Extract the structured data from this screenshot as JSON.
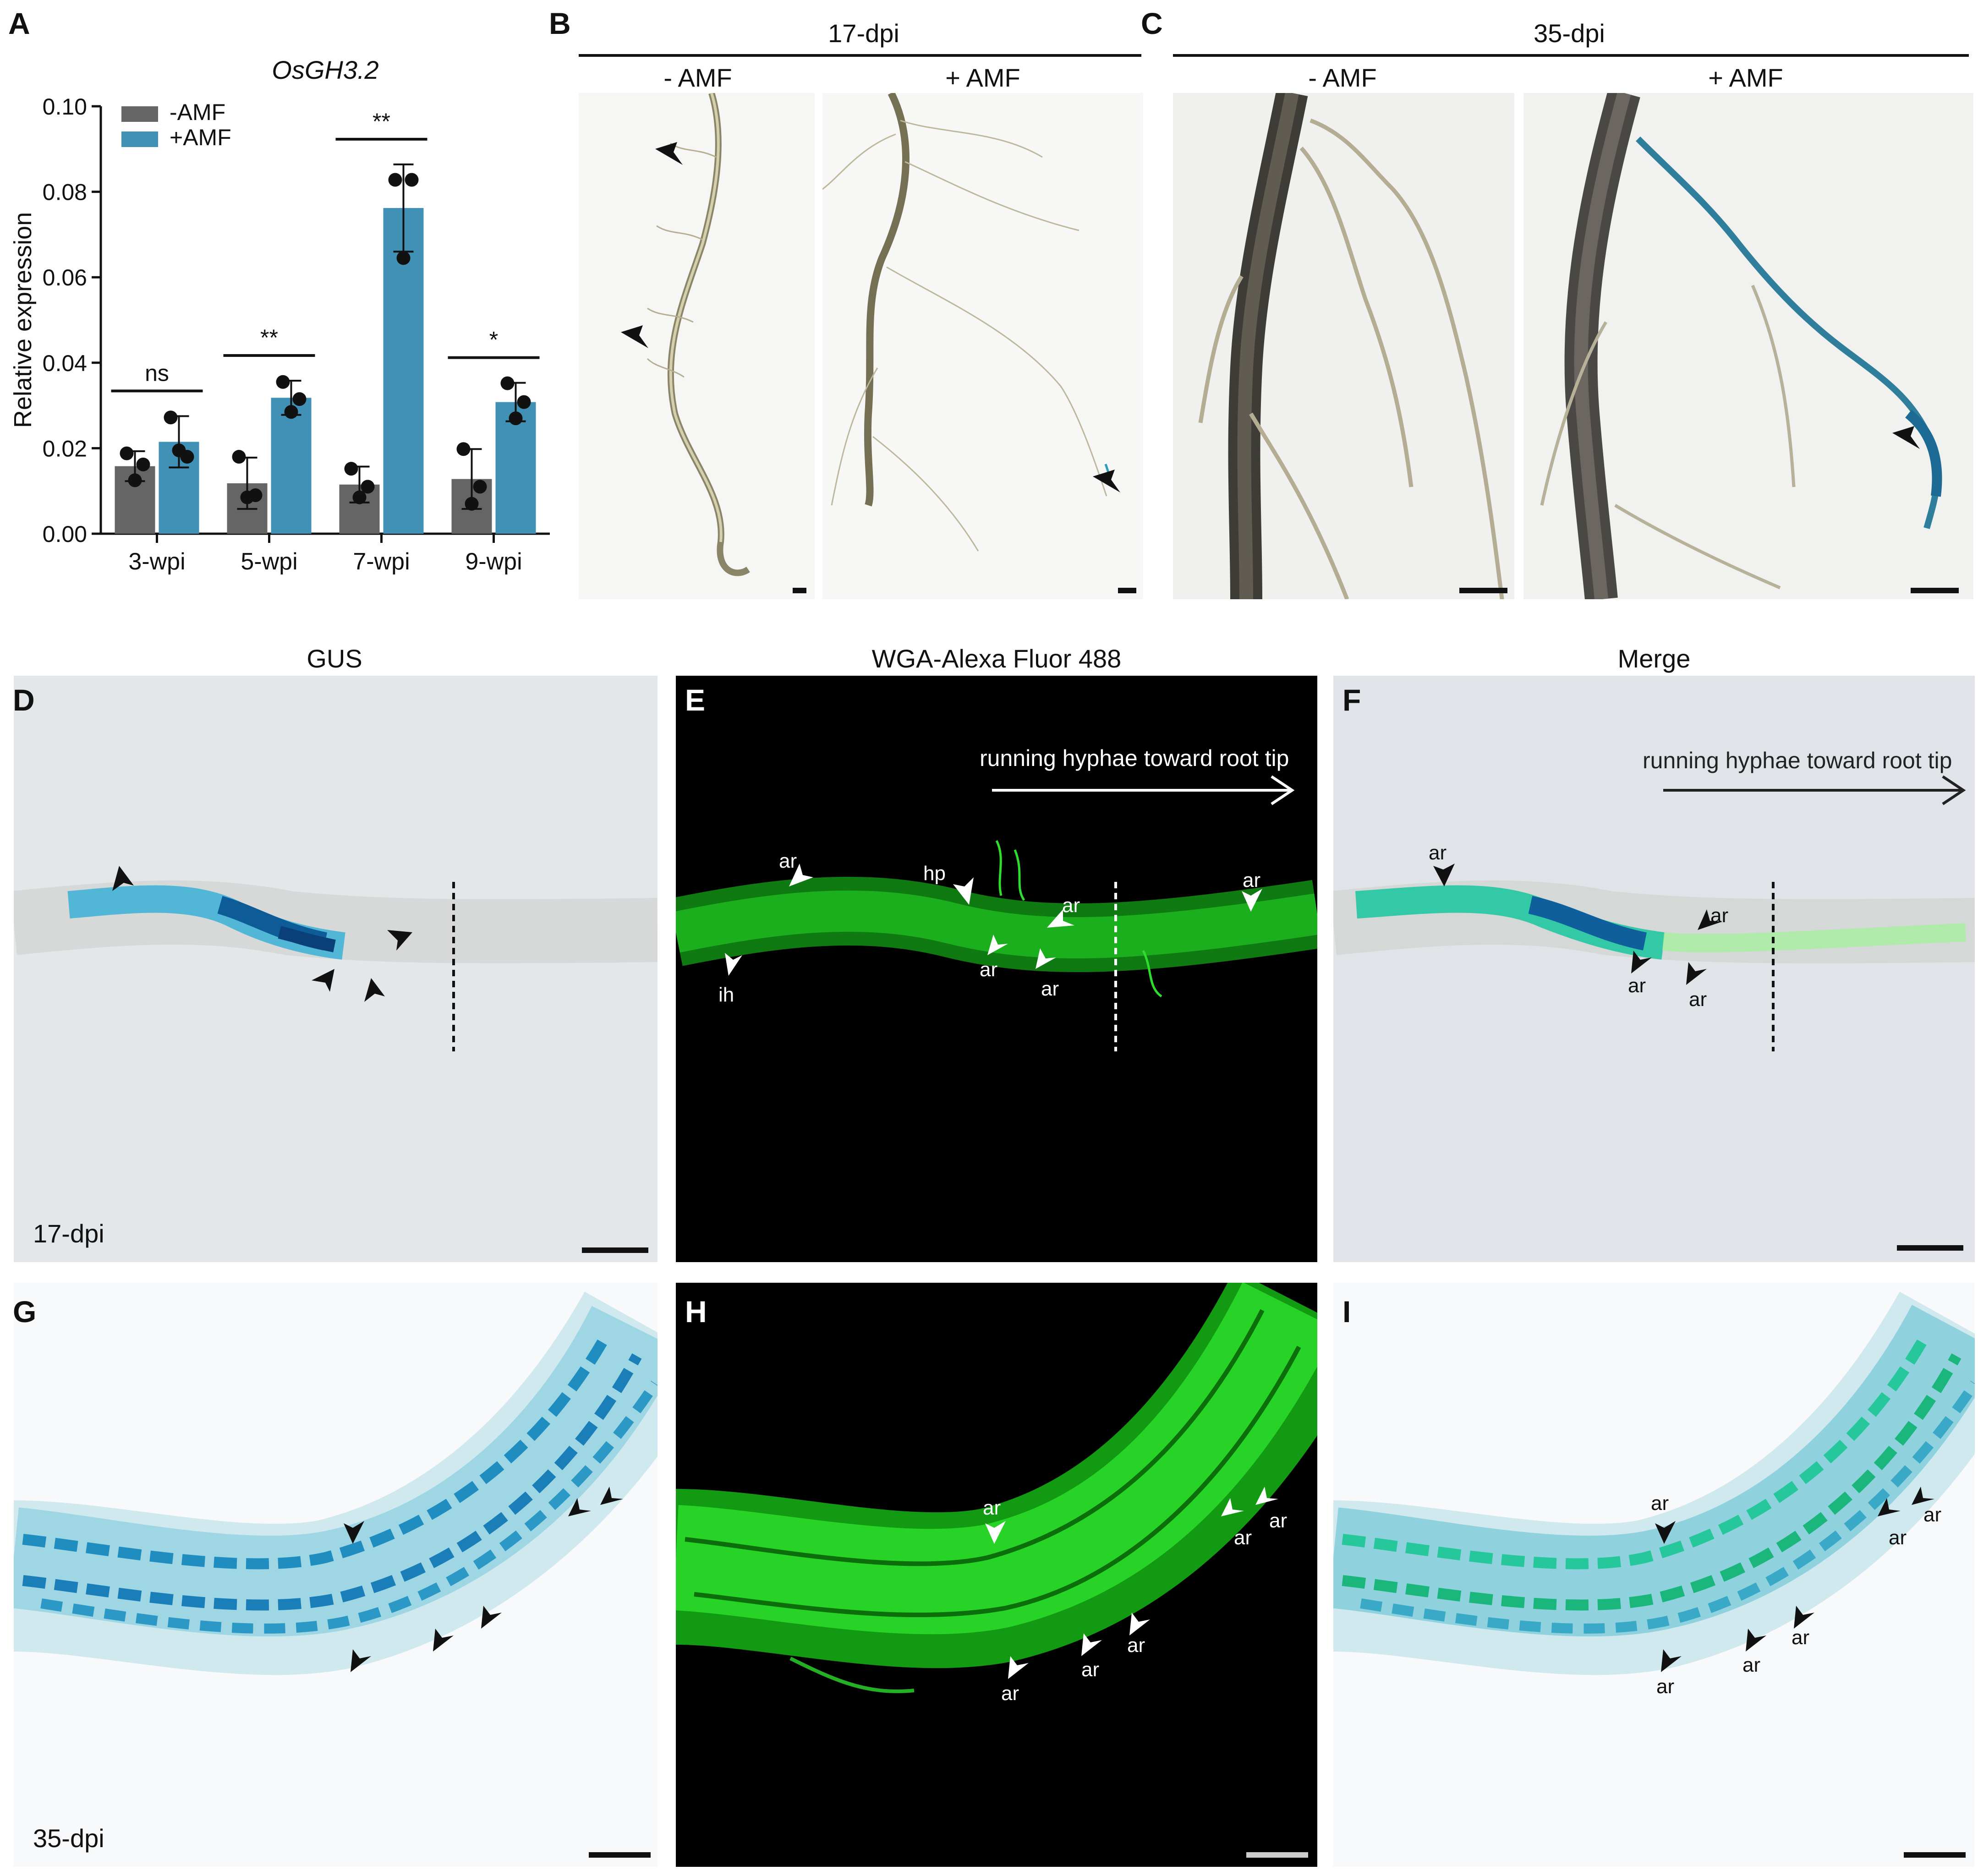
{
  "panels": {
    "A": "A",
    "B": "B",
    "C": "C",
    "D": "D",
    "E": "E",
    "F": "F",
    "G": "G",
    "H": "H",
    "I": "I"
  },
  "headers": {
    "b_time": "17-dpi",
    "c_time": "35-dpi",
    "b_left": "- AMF",
    "b_right": "+ AMF",
    "c_left": "- AMF",
    "c_right": "+ AMF",
    "row2_gus": "GUS",
    "row2_wga": "WGA-Alexa Fluor 488",
    "row2_merge": "Merge"
  },
  "labels": {
    "d_time": "17-dpi",
    "g_time": "35-dpi",
    "running": "running hyphae toward root tip",
    "ar": "ar",
    "hp": "hp",
    "ih": "ih"
  },
  "colors": {
    "neg_bar": "#656565",
    "pos_bar": "#4190b5",
    "gus_blue": "#1e7fb0",
    "fluor_green": "#22cc22"
  },
  "chart_data": {
    "type": "bar",
    "title": "OsGH3.2",
    "ylabel": "Relative expression",
    "xlabel": "",
    "ylim": [
      0,
      0.1
    ],
    "yticks": [
      "0.00",
      "0.02",
      "0.04",
      "0.06",
      "0.08",
      "0.10"
    ],
    "categories": [
      "3-wpi",
      "5-wpi",
      "7-wpi",
      "9-wpi"
    ],
    "legend_position": "top-left",
    "series": [
      {
        "name": "-AMF",
        "values": [
          0.0158,
          0.0118,
          0.0115,
          0.0128
        ],
        "errors": [
          0.0035,
          0.006,
          0.0042,
          0.007
        ],
        "points": [
          [
            0.0188,
            0.0162,
            0.0125
          ],
          [
            0.018,
            0.009,
            0.0085
          ],
          [
            0.0152,
            0.011,
            0.0085
          ],
          [
            0.0198,
            0.011,
            0.007
          ]
        ]
      },
      {
        "name": "+AMF",
        "values": [
          0.0215,
          0.0318,
          0.0762,
          0.0308
        ],
        "errors": [
          0.006,
          0.004,
          0.0102,
          0.0045
        ],
        "points": [
          [
            0.0272,
            0.018,
            0.0195
          ],
          [
            0.0355,
            0.0315,
            0.0285
          ],
          [
            0.0828,
            0.0828,
            0.0645
          ],
          [
            0.0352,
            0.0308,
            0.027
          ]
        ]
      }
    ],
    "significance": [
      "ns",
      "**",
      "**",
      "*"
    ]
  }
}
